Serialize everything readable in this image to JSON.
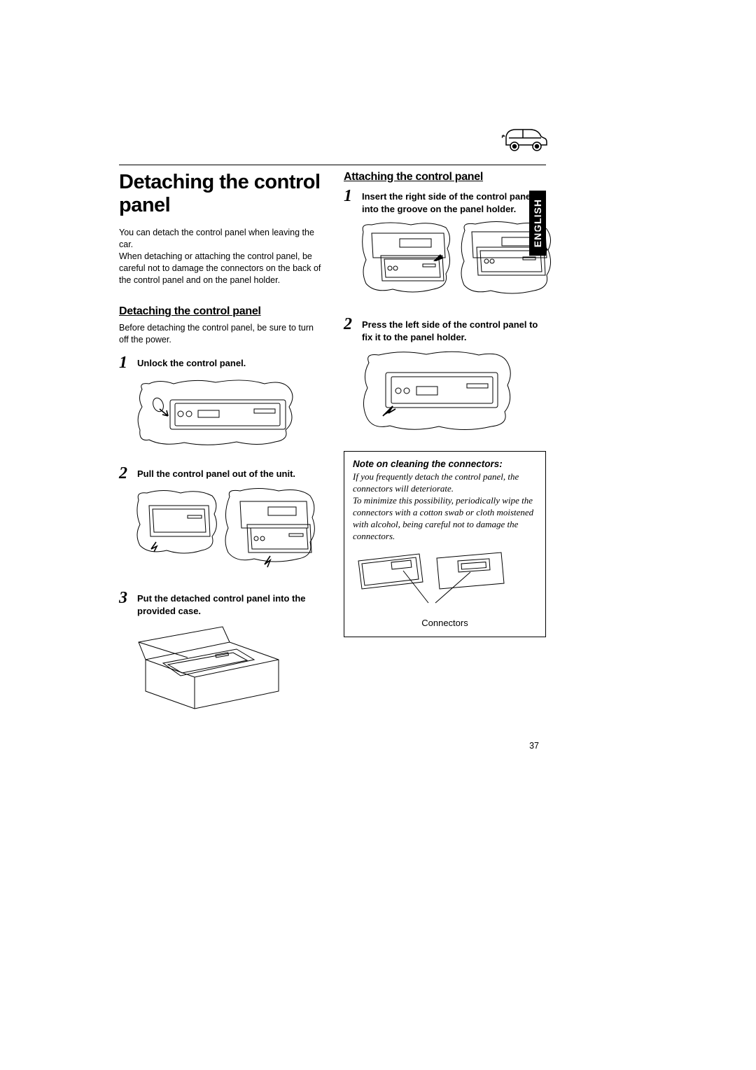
{
  "language_tab": "ENGLISH",
  "page_number": "37",
  "left": {
    "title": "Detaching the control panel",
    "intro": "You can detach the control panel when leaving the car.\nWhen detaching or attaching the control panel, be careful not to damage the connectors on the back of the control panel and on the panel holder.",
    "section_title": "Detaching the control panel",
    "section_intro": "Before detaching the control panel, be sure to turn off the power.",
    "steps": [
      {
        "n": "1",
        "t": "Unlock the control panel."
      },
      {
        "n": "2",
        "t": "Pull the control panel out of the unit."
      },
      {
        "n": "3",
        "t": "Put the detached control panel into the provided case."
      }
    ]
  },
  "right": {
    "section_title": "Attaching the control panel",
    "steps": [
      {
        "n": "1",
        "t": "Insert the right side of the control panel into the groove on the panel holder."
      },
      {
        "n": "2",
        "t": "Press the left side of the control panel to fix it to the panel holder."
      }
    ],
    "note_title": "Note on cleaning the connectors:",
    "note_body": "If you frequently detach the control panel, the connectors will deteriorate.\nTo minimize this possibility, periodically wipe the connectors with a cotton swab or cloth moistened with alcohol, being careful not to damage the connectors.",
    "connectors_label": "Connectors"
  },
  "style": {
    "text_color": "#000000",
    "bg_color": "#ffffff",
    "body_fontsize": 12.5,
    "step_fontsize": 13,
    "title_fontsize": 29,
    "subtitle_fontsize": 16,
    "stepnum_fontsize": 24,
    "note_body_fontsize": 13
  }
}
